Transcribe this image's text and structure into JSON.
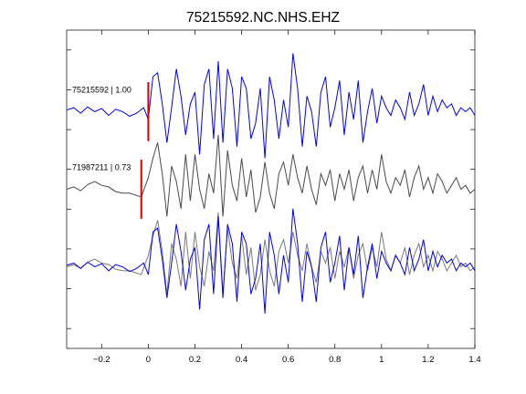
{
  "chart_data": {
    "type": "line",
    "title": "75215592.NC.NHS.EHZ",
    "xlabel": "",
    "ylabel": "",
    "xlim": [
      -0.35,
      1.4
    ],
    "xticks": [
      -0.2,
      0,
      0.2,
      0.4,
      0.6,
      0.8,
      1,
      1.2,
      1.4
    ],
    "xtick_labels": [
      "−0.2",
      "0",
      "0.2",
      "0.4",
      "0.6",
      "0.8",
      "1",
      "1.2",
      "1.4"
    ],
    "ylim": [
      -1.05,
      3.05
    ],
    "ytick_count": 8,
    "grid": false,
    "legend": "none",
    "colors": {
      "primary": "#0000ff",
      "secondary": "#4a4a4a",
      "overlay_gray": "#7a7a7a",
      "pick": "#dd0000"
    },
    "traces": [
      {
        "label": "75215592 | 1.00",
        "offset": 2,
        "pick_time": 0.0,
        "color": "#0000ff"
      },
      {
        "label": "71987211 | 0.73",
        "offset": 1,
        "pick_time": -0.03,
        "color": "#4a4a4a"
      },
      {
        "label": "",
        "offset": 0,
        "pick_time": null,
        "color": "overlay"
      }
    ],
    "series": [
      {
        "x": [
          -0.35,
          -0.32,
          -0.29,
          -0.26,
          -0.23,
          -0.2,
          -0.17,
          -0.14,
          -0.11,
          -0.08,
          -0.05,
          -0.02,
          0.0,
          0.02,
          0.04,
          0.06,
          0.08,
          0.1,
          0.12,
          0.14,
          0.16,
          0.18,
          0.2,
          0.22,
          0.24,
          0.26,
          0.28,
          0.3,
          0.32,
          0.34,
          0.36,
          0.38,
          0.4,
          0.42,
          0.44,
          0.46,
          0.48,
          0.5,
          0.52,
          0.54,
          0.56,
          0.58,
          0.6,
          0.62,
          0.64,
          0.66,
          0.68,
          0.7,
          0.72,
          0.74,
          0.76,
          0.78,
          0.8,
          0.82,
          0.84,
          0.86,
          0.88,
          0.9,
          0.92,
          0.94,
          0.96,
          0.98,
          1.0,
          1.02,
          1.04,
          1.06,
          1.08,
          1.1,
          1.12,
          1.14,
          1.16,
          1.18,
          1.2,
          1.22,
          1.24,
          1.26,
          1.28,
          1.3,
          1.32,
          1.34,
          1.36,
          1.38,
          1.4
        ],
        "y": [
          0.02,
          0.05,
          -0.02,
          0.06,
          0.0,
          0.04,
          -0.05,
          0.03,
          0.0,
          -0.06,
          -0.02,
          0.05,
          -0.1,
          0.45,
          0.5,
          0.1,
          -0.4,
          0.05,
          0.55,
          0.2,
          -0.3,
          0.1,
          0.25,
          -0.55,
          0.35,
          0.55,
          -0.35,
          0.65,
          -0.4,
          0.55,
          0.3,
          -0.45,
          0.45,
          0.3,
          -0.35,
          -0.15,
          0.3,
          -0.6,
          0.45,
          0.15,
          -0.35,
          0.15,
          -0.2,
          0.75,
          0.3,
          -0.45,
          0.2,
          0.0,
          -0.45,
          0.25,
          0.45,
          -0.2,
          0.05,
          0.4,
          -0.3,
          0.25,
          -0.1,
          0.4,
          -0.4,
          0.0,
          0.3,
          -0.15,
          0.2,
          0.05,
          -0.05,
          0.15,
          0.05,
          -0.1,
          0.25,
          -0.05,
          0.1,
          0.35,
          -0.05,
          0.2,
          0.0,
          0.15,
          0.05,
          0.1,
          -0.05,
          0.05,
          0.0,
          0.05,
          -0.05
        ]
      },
      {
        "x": [
          -0.35,
          -0.32,
          -0.29,
          -0.26,
          -0.23,
          -0.2,
          -0.17,
          -0.14,
          -0.11,
          -0.08,
          -0.05,
          -0.03,
          0.0,
          0.02,
          0.04,
          0.06,
          0.08,
          0.1,
          0.12,
          0.14,
          0.16,
          0.18,
          0.2,
          0.22,
          0.24,
          0.26,
          0.28,
          0.3,
          0.32,
          0.34,
          0.36,
          0.38,
          0.4,
          0.42,
          0.44,
          0.46,
          0.48,
          0.5,
          0.52,
          0.54,
          0.56,
          0.58,
          0.6,
          0.62,
          0.64,
          0.66,
          0.68,
          0.7,
          0.72,
          0.74,
          0.76,
          0.78,
          0.8,
          0.82,
          0.84,
          0.86,
          0.88,
          0.9,
          0.92,
          0.94,
          0.96,
          0.98,
          1.0,
          1.02,
          1.04,
          1.06,
          1.08,
          1.1,
          1.12,
          1.14,
          1.16,
          1.18,
          1.2,
          1.22,
          1.24,
          1.26,
          1.28,
          1.3,
          1.32,
          1.34,
          1.36,
          1.38,
          1.4
        ],
        "y": [
          0.0,
          0.03,
          -0.02,
          0.06,
          0.1,
          0.05,
          0.03,
          -0.03,
          -0.05,
          -0.05,
          -0.08,
          -0.1,
          0.15,
          0.4,
          0.6,
          0.2,
          -0.35,
          0.3,
          0.1,
          -0.25,
          0.45,
          -0.15,
          0.45,
          0.0,
          -0.25,
          0.2,
          -0.05,
          0.7,
          -0.35,
          0.5,
          0.05,
          -0.15,
          0.4,
          -0.1,
          0.25,
          -0.3,
          -0.1,
          0.35,
          -0.05,
          -0.25,
          0.2,
          0.35,
          0.05,
          0.45,
          0.15,
          -0.05,
          0.3,
          0.0,
          -0.2,
          0.2,
          0.05,
          0.25,
          -0.15,
          0.2,
          0.0,
          0.25,
          -0.15,
          0.15,
          0.3,
          -0.05,
          0.25,
          0.0,
          0.45,
          0.1,
          -0.05,
          0.15,
          0.05,
          0.25,
          -0.1,
          0.15,
          0.3,
          0.0,
          0.15,
          -0.05,
          0.2,
          0.1,
          -0.05,
          0.05,
          0.15,
          0.0,
          0.05,
          -0.05,
          0.0
        ]
      }
    ]
  }
}
